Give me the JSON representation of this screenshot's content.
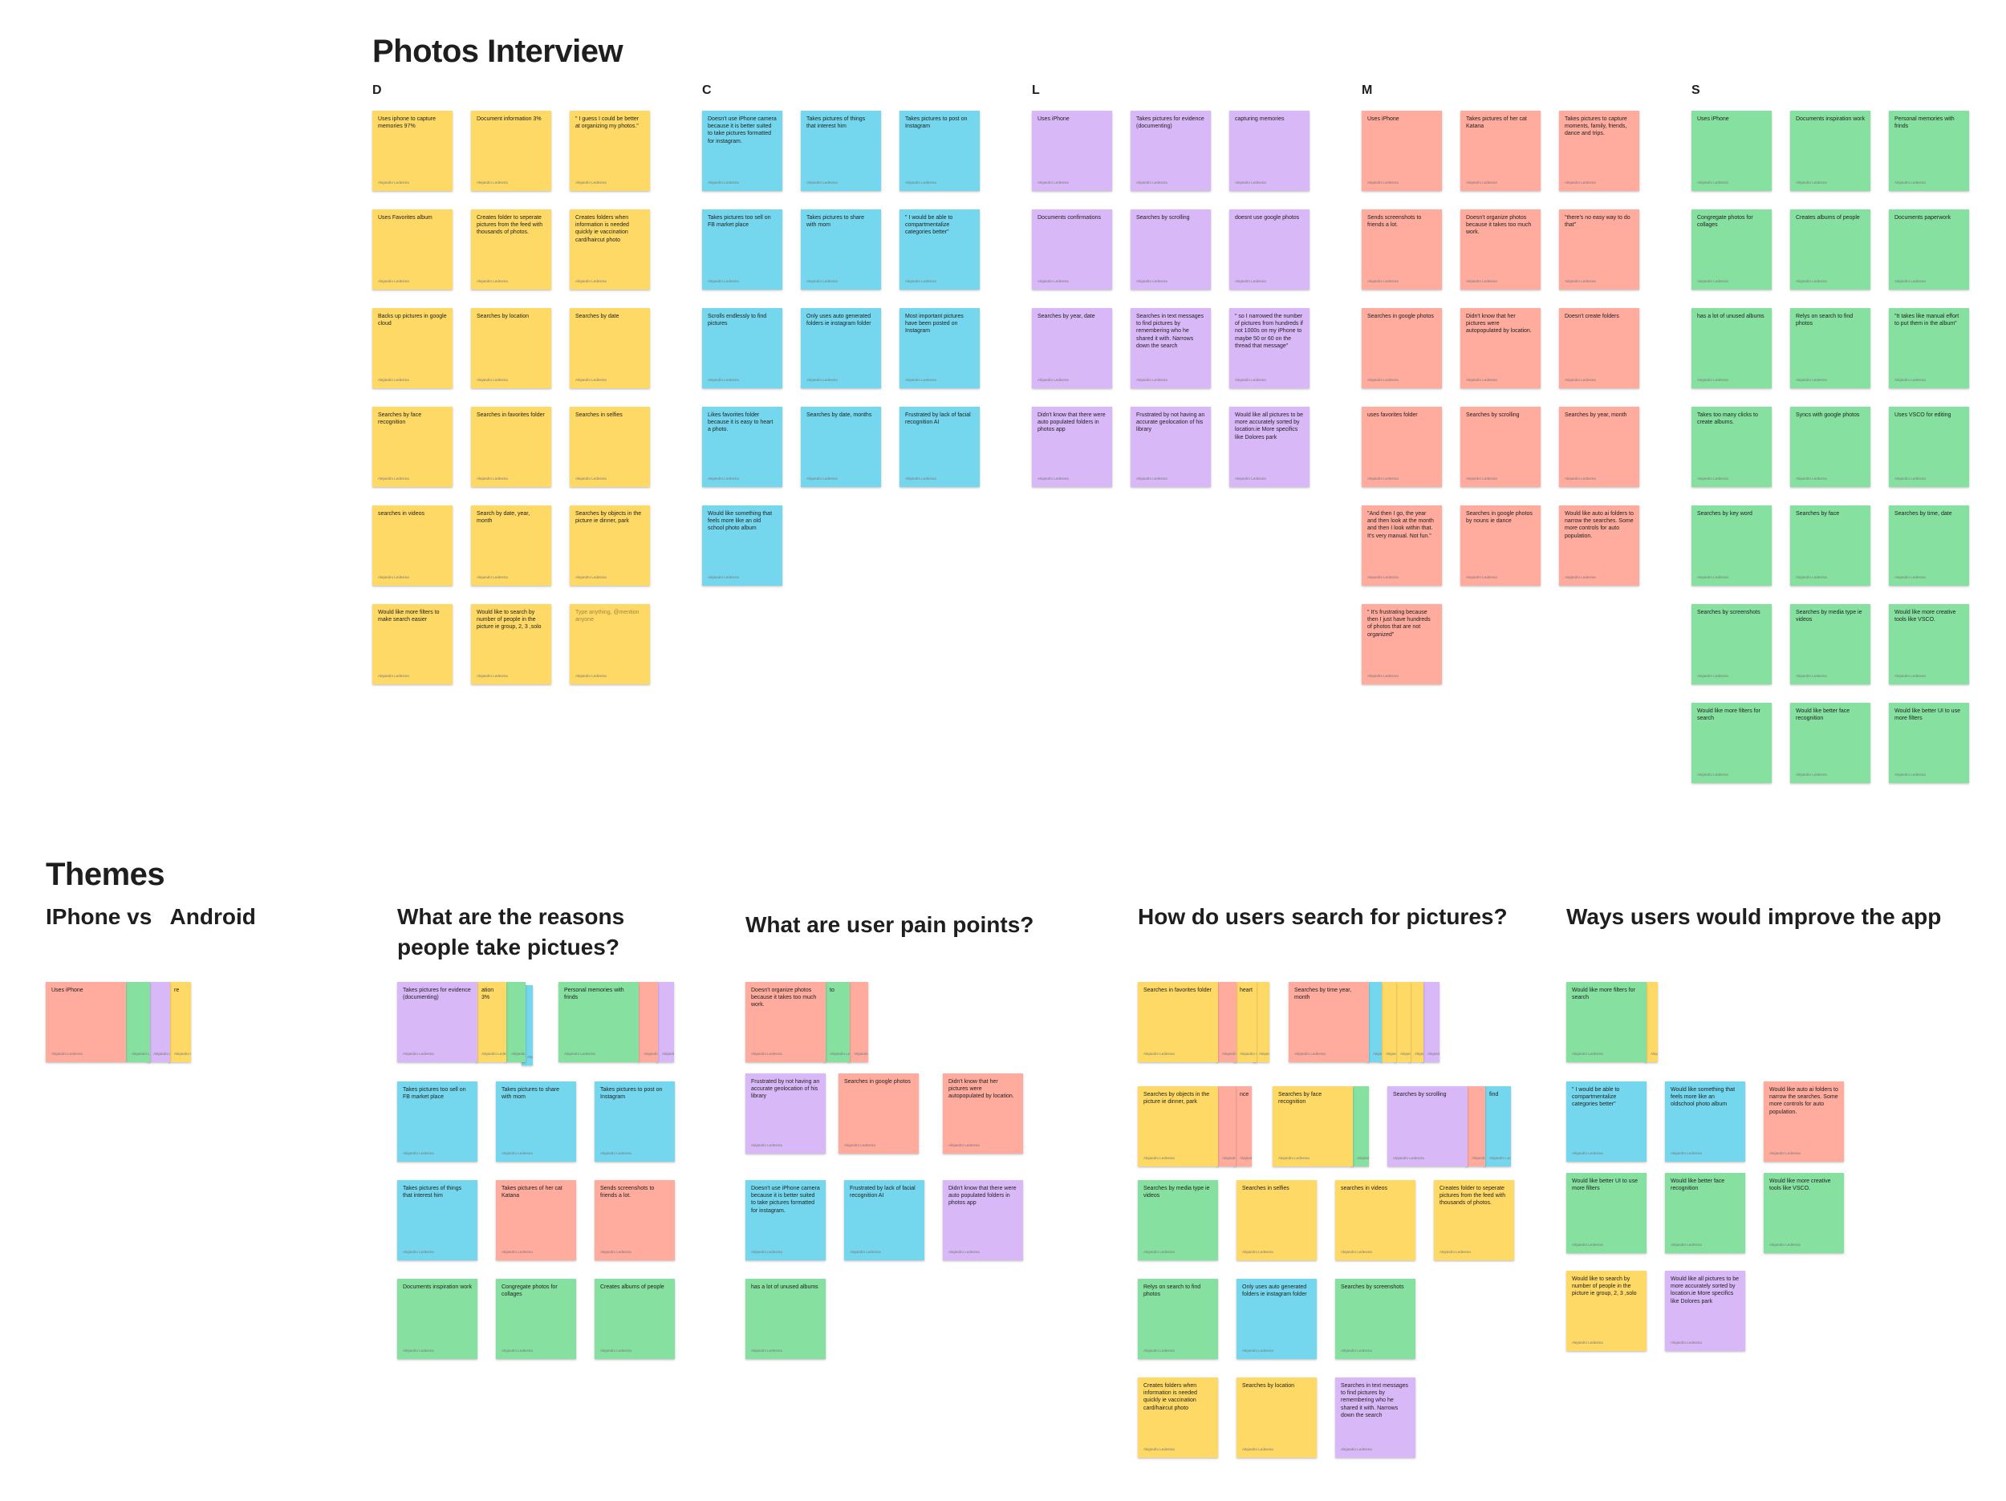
{
  "board": {
    "title": "Photos Interview",
    "themes_title": "Themes",
    "author": "Alejandro Ledesma",
    "colors": {
      "yellow": "#ffd966",
      "blue": "#74d7ee",
      "purple": "#d8b8f7",
      "red": "#ffab9e",
      "green": "#86e0a0"
    }
  },
  "interview": {
    "columns": [
      {
        "letter": "D",
        "notes": [
          "Uses iphone to capture memories 97%",
          "Document information 3%",
          "\" I guess I could be better at organizing my photos.\"",
          "Uses Favorites album",
          "Creates folder to seperate pictures from the feed with thousands of photos.",
          "Creates folders when information is needed quickly ie vaccination card/haircut photo",
          "Backs up pictures in google cloud",
          "Searches by location",
          "Searches by date",
          "Searches by face recognition",
          "Searches in favorites folder",
          "Searches in selfies",
          "searches in videos",
          "Search by date, year, month",
          "Searches by objects in the picture ie dinner, park",
          "Would like more filters to make search easier",
          "Would like to search by number of people in the picture ie group, 2, 3 ,solo",
          "Type anything, @mention anyone"
        ]
      },
      {
        "letter": "C",
        "notes": [
          "Doesn't use iPhone camera because it is better suited to take pictures formatted for instagram.",
          "Takes pictures of things that interest him",
          "Takes pictures to post on Instagram",
          "Takes pictures too sell on FB market place",
          "Takes pictures to share with mom",
          "\" I would be able to compartmentalize categories better\"",
          "Scrolls endlessly to find pictures",
          "Only uses auto generated folders ie instagram folder",
          "Most important pictures have been posted on Instagram",
          "Likes favorites folder because it is easy to heart a photo.",
          "Searches by date, months",
          "Frustrated by lack of facial recognition AI",
          "Would like something that feels more like an old school photo album"
        ]
      },
      {
        "letter": "L",
        "notes": [
          "Uses iPhone",
          "Takes pictures for evidence (documenting)",
          "capturing memories",
          "Documents confirmations",
          "Searches by scrolling",
          "doesnt use google photos",
          "Searches by year, date",
          "Searches in text messages to find pictures by remembering who he shared it with. Narrows down the search",
          "\" so I narrowed the number of pictures from hundreds if not 1000s on my iPhone to maybe 50 or 60 on the thread that message\"",
          "Didn't know that there were auto populated folders in photos app",
          "Frustrated by not having an accurate geolocation of his library",
          "Would like all pictures to be more accurately sorted by location.ie More specifics like Dolores park"
        ]
      },
      {
        "letter": "M",
        "notes": [
          "Uses iPhone",
          "Takes pictures of her cat Katana",
          "Takes pictures to capture moments, family, friends, dance and trips.",
          "Sends screenshots to friends a lot.",
          "Doesn't organize photos because it takes too much work.",
          "\"there's no easy way to do that\"",
          "Searches in google photos",
          "Didn't know that her pictures were autopopulated by location.",
          "Doesn't create folders",
          "uses favorites folder",
          "Searches by scrolling",
          "Searches by year, month",
          "\"And then I go, the year and then look at the month and then I look within that. It's very manual. Not fun.\"",
          "Searches in google photos by nouns ie dance",
          "Would like auto ai folders to narrow the searches. Some more controls for auto population.",
          "\" It's frustrating because then I just have hundreds of photos that are not organized\""
        ]
      },
      {
        "letter": "S",
        "notes": [
          "Uses iPhone",
          "Documents inspiration work",
          "Personal memories with frinds",
          "Congregate photos for collages",
          "Creates albums of people",
          "Documents paperwork",
          "has a lot of unused albums",
          "Relys on search to find photos",
          "\"It takes like manual effort to put them in the album\"",
          "Takes too many clicks to create albums.",
          "Syncs with google photos",
          "Uses VSCO for editing",
          "Searches by key word",
          "Searches by face",
          "Searches by time, date",
          "Searches by screenshots",
          "Searches by media type ie videos",
          "Would like more creative tools like VSCO.",
          "Would like more filters for search",
          "Would like better face recognition",
          "Would like better UI to use more filters"
        ]
      }
    ]
  },
  "themes": {
    "groups": [
      {
        "title": "IPhone vs   Android",
        "notes": [
          "Uses iPhone",
          "",
          "",
          "re"
        ]
      },
      {
        "title": "What are the reasons people take pictues?",
        "notes": [
          "Takes pictures for evidence (documenting)",
          "ation 3%",
          "",
          "",
          "Personal memories with frinds",
          "",
          "",
          "Takes pictures too sell on FB market place",
          "Takes pictures to share with mom",
          "Takes pictures to post on Instagram",
          "Takes pictures of things that interest him",
          "Takes pictures of her cat Katana",
          "Sends screenshots to friends a lot.",
          "Documents inspiration work",
          "Congregate photos for collages",
          "Creates albums of people"
        ]
      },
      {
        "title": "What are user pain points?",
        "notes": [
          "Doesn't organize photos because it takes too much work.",
          "to",
          "",
          "Frustrated by not having an accurate geolocation of his library",
          "Searches in google photos",
          "Didn't know that her pictures were autopopulated by location.",
          "Doesn't use iPhone camera because it is better suited to take pictures formatted for instagram.",
          "Frustrated by lack of facial recognition AI",
          "Didn't know that there were auto populated folders in photos app",
          "has a lot of unused albums"
        ]
      },
      {
        "title": "How do users search for pictures?",
        "notes": [
          "Searches in favorites folder",
          "",
          "heart",
          "",
          "Searches by time year, month",
          "",
          "",
          "",
          "",
          "",
          "Searches by objects in the picture ie dinner, park",
          "",
          "nce",
          "Searches by face recognition",
          "",
          "Searches by scrolling",
          "",
          "find",
          "Searches by media type ie videos",
          "Searches in selfies",
          "searches in videos",
          "Creates folder to seperate pictures from the feed with thousands of photos.",
          "Relys on search to find photos",
          "Only uses auto generated folders ie instagram folder",
          "Searches by screenshots",
          "Creates folders when information is needed quickly ie vaccination card/haircut photo",
          "Searches by location",
          "Searches in text messages to find pictures by remembering who he shared it with. Narrows down the search"
        ]
      },
      {
        "title": "Ways users would improve the app",
        "notes": [
          "Would like more filters for search",
          "",
          "\" I would be able to compartmentalize categories better\"",
          "Would like something that feels more like an oldschool photo album",
          "Would like auto ai folders to narrow the searches. Some more controls for auto population.",
          "Would like better UI to use more filters",
          "Would like better face recognition",
          "Would like more creative tools like VSCO.",
          "Would like to search by number of people in the picture ie group, 2, 3 ,solo",
          "Would like all pictures to be more accurately sorted by location.ie More specifics like Dolores park"
        ]
      }
    ]
  }
}
